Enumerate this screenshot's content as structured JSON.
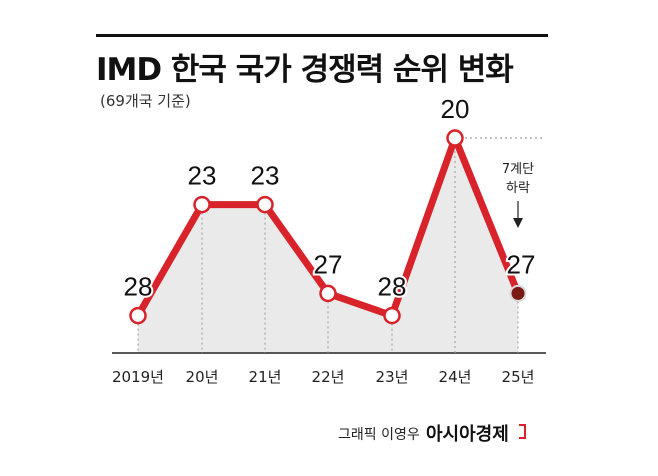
{
  "header": {
    "title": "IMD 한국 국가 경쟁력 순위 변화",
    "subtitle": "(69개국 기준)"
  },
  "chart_data": {
    "type": "area",
    "title": "IMD 한국 국가 경쟁력 순위 변화",
    "subtitle": "(69개국 기준)",
    "xlabel": "",
    "ylabel": "",
    "categories": [
      "2019년",
      "20년",
      "21년",
      "22년",
      "23년",
      "24년",
      "25년"
    ],
    "series": [
      {
        "values": [
          28,
          23,
          23,
          27,
          28,
          20,
          27
        ]
      }
    ],
    "data_labels": [
      "28",
      "23",
      "23",
      "27",
      "28",
      "20",
      "27"
    ],
    "y_axis": "rank (inverted: lower value plotted higher)",
    "grid": false,
    "annotations": [
      {
        "text": "7계단\n하락",
        "from_category": "24년",
        "to_category": "25년"
      }
    ],
    "colors": {
      "line": "#d8232a",
      "area": "#e6e6e6",
      "last_point": "#7a1a14"
    }
  },
  "footer": {
    "credit": "그래픽 이영우",
    "brand": "아시아경제"
  }
}
